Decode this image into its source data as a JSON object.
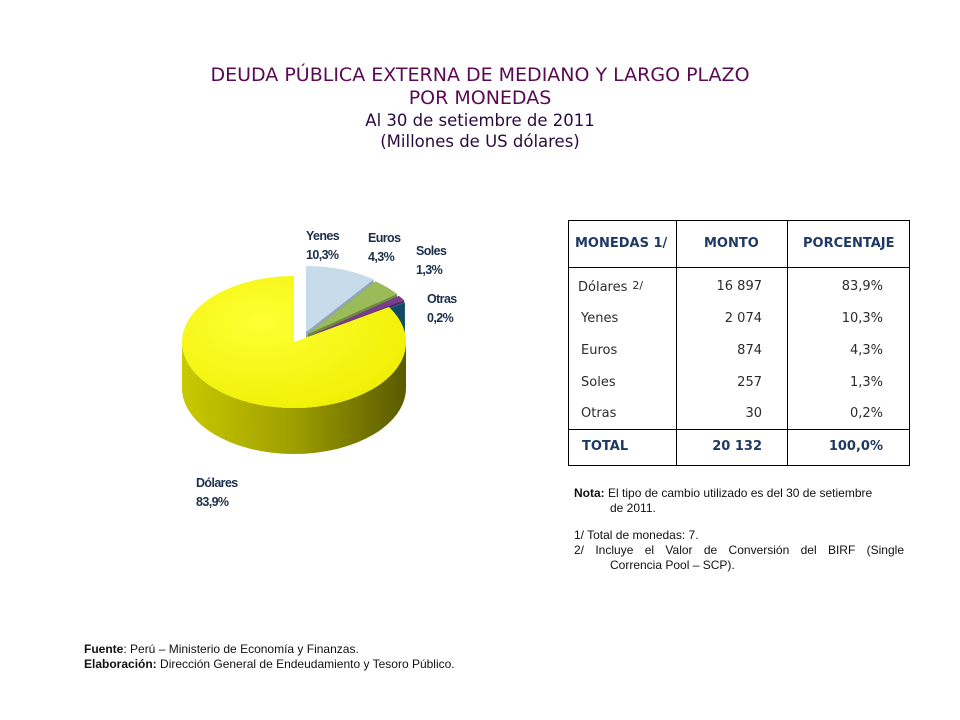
{
  "title": {
    "line1": "DEUDA PÚBLICA EXTERNA DE MEDIANO Y LARGO PLAZO",
    "line2": "POR  MONEDAS",
    "line3": "Al 30 de setiembre de 2011",
    "line4": "(Millones de US dólares)"
  },
  "chart_data": {
    "type": "pie",
    "title": "DEUDA PÚBLICA EXTERNA DE MEDIANO Y LARGO PLAZO POR MONEDAS",
    "categories": [
      "Dólares",
      "Yenes",
      "Euros",
      "Soles",
      "Otras"
    ],
    "values": [
      83.9,
      10.3,
      4.3,
      1.3,
      0.2
    ],
    "labels": [
      {
        "name": "Dólares",
        "pct": "83,9%"
      },
      {
        "name": "Yenes",
        "pct": "10,3%"
      },
      {
        "name": "Euros",
        "pct": "4,3%"
      },
      {
        "name": "Soles",
        "pct": "1,3%"
      },
      {
        "name": "Otras",
        "pct": "0,2%"
      }
    ],
    "exploded": "Dólares",
    "colors": [
      "#f4f400",
      "#c6dcea",
      "#9bba59",
      "#7a3c8c",
      "#1f6f94"
    ]
  },
  "table": {
    "headers": [
      "MONEDAS  1/",
      "MONTO",
      "PORCENTAJE"
    ],
    "rows": [
      {
        "currency": "Dólares",
        "note": "2/",
        "amount": "16 897",
        "percent": "83,9%"
      },
      {
        "currency": "Yenes",
        "note": "",
        "amount": "2 074",
        "percent": "10,3%"
      },
      {
        "currency": "Euros",
        "note": "",
        "amount": "874",
        "percent": "4,3%"
      },
      {
        "currency": "Soles",
        "note": "",
        "amount": "257",
        "percent": "1,3%"
      },
      {
        "currency": "Otras",
        "note": "",
        "amount": "30",
        "percent": "0,2%"
      }
    ],
    "total": {
      "label": "TOTAL",
      "amount": "20 132",
      "percent": "100,0%"
    }
  },
  "notes": {
    "nota_label": "Nota:",
    "nota_text_1": "El tipo de cambio utilizado es del 30 de setiembre",
    "nota_text_2": "de 2011.",
    "n1": "1/  Total de monedas: 7.",
    "n2_a": "2/  Incluye el Valor de Conversión del BIRF (Single",
    "n2_b": "Correncia Pool – SCP)."
  },
  "footer": {
    "fuente_label": "Fuente",
    "fuente_text": ": Perú – Ministerio de Economía y Finanzas.",
    "elab_label": "Elaboración:",
    "elab_text": "  Dirección  General de Endeudamiento y Tesoro Público."
  }
}
